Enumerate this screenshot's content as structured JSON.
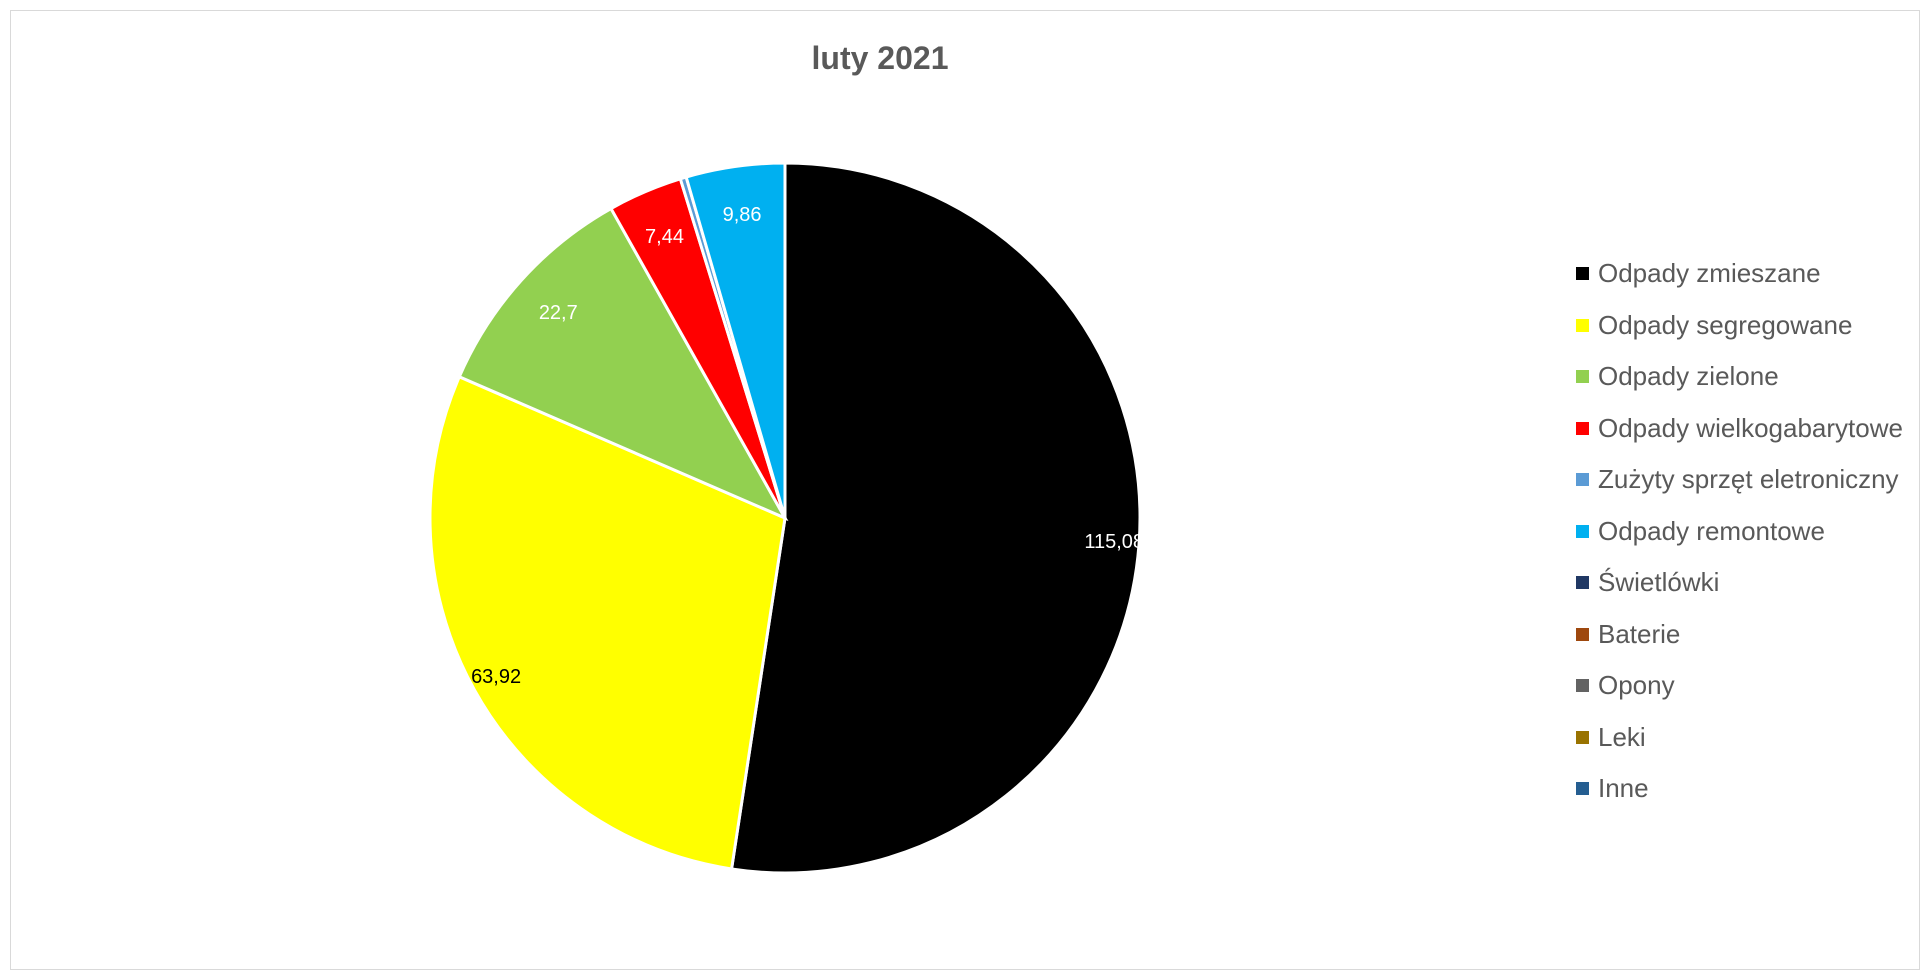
{
  "chart_data": {
    "type": "pie",
    "title": "luty 2021",
    "legend_position": "right",
    "slices": [
      {
        "name": "Odpady zmieszane",
        "value": 115.08,
        "label": "115,08",
        "color": "#000000",
        "label_color": "#ffffff"
      },
      {
        "name": "Odpady segregowane",
        "value": 63.92,
        "label": "63,92",
        "color": "#ffff00",
        "label_color": "#000000"
      },
      {
        "name": "Odpady zielone",
        "value": 22.7,
        "label": "22,7",
        "color": "#92d050",
        "label_color": "#ffffff"
      },
      {
        "name": "Odpady wielkogabarytowe",
        "value": 7.44,
        "label": "7,44",
        "color": "#ff0000",
        "label_color": "#ffffff"
      },
      {
        "name": "Zużyty sprzęt eletroniczny",
        "value": 0.6,
        "label": "",
        "color": "#5b9bd5",
        "label_color": "#ffffff"
      },
      {
        "name": "Odpady remontowe",
        "value": 9.86,
        "label": "9,86",
        "color": "#00b0f0",
        "label_color": "#ffffff"
      },
      {
        "name": "Świetlówki",
        "value": 0,
        "label": "",
        "color": "#203864",
        "label_color": "#ffffff"
      },
      {
        "name": "Baterie",
        "value": 0,
        "label": "",
        "color": "#9e480e",
        "label_color": "#ffffff"
      },
      {
        "name": "Opony",
        "value": 0,
        "label": "",
        "color": "#636363",
        "label_color": "#ffffff"
      },
      {
        "name": "Leki",
        "value": 0,
        "label": "",
        "color": "#997300",
        "label_color": "#ffffff"
      },
      {
        "name": "Inne",
        "value": 0,
        "label": "",
        "color": "#255e91",
        "label_color": "#ffffff"
      }
    ]
  }
}
